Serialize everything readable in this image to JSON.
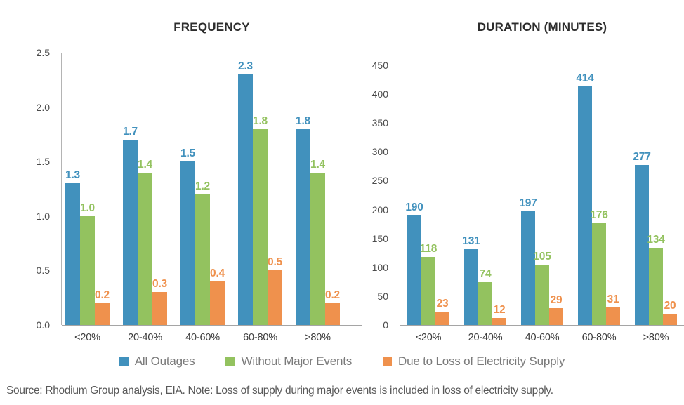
{
  "figure": {
    "legend": [
      {
        "label": "All Outages",
        "color": "#4191BD"
      },
      {
        "label": "Without Major Events",
        "color": "#93C25F"
      },
      {
        "label": "Due to Loss of Electricity Supply",
        "color": "#EF914D"
      }
    ],
    "source_note": "Source: Rhodium Group analysis, EIA. Note: Loss of supply during major events is included in loss of electricity supply."
  },
  "chart_data": [
    {
      "type": "bar",
      "title": "FREQUENCY",
      "categories": [
        "<20%",
        "20-40%",
        "40-60%",
        "60-80%",
        ">80%"
      ],
      "series": [
        {
          "name": "All Outages",
          "color": "#4191BD",
          "values": [
            1.3,
            1.7,
            1.5,
            2.3,
            1.8
          ]
        },
        {
          "name": "Without Major Events",
          "color": "#93C25F",
          "values": [
            1.0,
            1.4,
            1.2,
            1.8,
            1.4
          ]
        },
        {
          "name": "Due to Loss of Electricity Supply",
          "color": "#EF914D",
          "values": [
            0.2,
            0.3,
            0.4,
            0.5,
            0.2
          ]
        }
      ],
      "ylim": [
        0,
        2.5
      ],
      "yticks": [
        "0.0",
        "0.5",
        "1.0",
        "1.5",
        "2.0",
        "2.5"
      ],
      "label_decimals": 1,
      "grid": false,
      "legend_position": "bottom-shared"
    },
    {
      "type": "bar",
      "title": "DURATION (MINUTES)",
      "categories": [
        "<20%",
        "20-40%",
        "40-60%",
        "60-80%",
        ">80%"
      ],
      "series": [
        {
          "name": "All Outages",
          "color": "#4191BD",
          "values": [
            190,
            131,
            197,
            414,
            277
          ]
        },
        {
          "name": "Without Major Events",
          "color": "#93C25F",
          "values": [
            118,
            74,
            105,
            176,
            134
          ]
        },
        {
          "name": "Due to Loss of Electricity Supply",
          "color": "#EF914D",
          "values": [
            23,
            12,
            29,
            31,
            20
          ]
        }
      ],
      "ylim": [
        0,
        450
      ],
      "yticks": [
        "0",
        "50",
        "100",
        "150",
        "200",
        "250",
        "300",
        "350",
        "400",
        "450"
      ],
      "label_decimals": 0,
      "grid": false,
      "legend_position": "bottom-shared"
    }
  ]
}
